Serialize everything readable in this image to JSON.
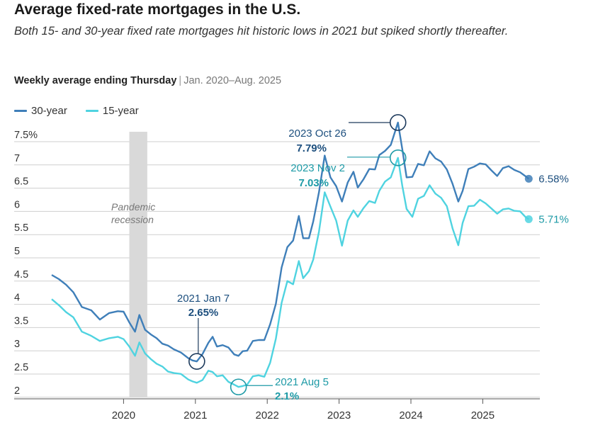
{
  "header": {
    "title": "Average fixed-rate mortgages in the U.S.",
    "subtitle": "Both 15- and 30-year fixed rate mortgages hit historic lows in 2021 but spiked shortly thereafter.",
    "description": "Weekly average ending Thursday",
    "separator": "|",
    "date_range": "Jan. 2020–Aug. 2025"
  },
  "colors": {
    "thirty_year": "#3f7fb9",
    "fifteen_year": "#4fd3e0",
    "recession": "#d9d9d9",
    "grid": "#cfcfcf",
    "annotation_dark": "#1d4f7e",
    "annotation_teal": "#1d9aa6"
  },
  "chart_data": {
    "type": "line",
    "x_axis": {
      "ticks": [
        "2020",
        "2021",
        "2022",
        "2023",
        "2024",
        "2025"
      ]
    },
    "y_axis": {
      "ticks": [
        "7.5%",
        "7",
        "6.5",
        "6",
        "5.5",
        "5",
        "4.5",
        "4",
        "3.5",
        "3",
        "2.5",
        "2"
      ],
      "range": [
        1.8,
        7.8
      ]
    },
    "grid": true,
    "legend": {
      "placement": "top-left"
    },
    "shaded_region": {
      "label": "Pandemic recession",
      "start": 2020.08,
      "end": 2020.33
    },
    "series": [
      {
        "name": "30-year",
        "end_label": "6.58%",
        "points": [
          [
            2019.0,
            4.51
          ],
          [
            2019.1,
            4.42
          ],
          [
            2019.2,
            4.3
          ],
          [
            2019.3,
            4.14
          ],
          [
            2019.42,
            3.82
          ],
          [
            2019.55,
            3.75
          ],
          [
            2019.67,
            3.55
          ],
          [
            2019.8,
            3.69
          ],
          [
            2019.92,
            3.73
          ],
          [
            2020.0,
            3.72
          ],
          [
            2020.08,
            3.49
          ],
          [
            2020.16,
            3.29
          ],
          [
            2020.22,
            3.65
          ],
          [
            2020.3,
            3.33
          ],
          [
            2020.38,
            3.23
          ],
          [
            2020.46,
            3.15
          ],
          [
            2020.54,
            3.03
          ],
          [
            2020.62,
            2.99
          ],
          [
            2020.7,
            2.91
          ],
          [
            2020.8,
            2.84
          ],
          [
            2020.9,
            2.72
          ],
          [
            2020.96,
            2.67
          ],
          [
            2021.02,
            2.65
          ],
          [
            2021.1,
            2.81
          ],
          [
            2021.18,
            3.05
          ],
          [
            2021.24,
            3.18
          ],
          [
            2021.3,
            2.97
          ],
          [
            2021.38,
            3.0
          ],
          [
            2021.46,
            2.95
          ],
          [
            2021.54,
            2.8
          ],
          [
            2021.6,
            2.77
          ],
          [
            2021.66,
            2.87
          ],
          [
            2021.72,
            2.88
          ],
          [
            2021.8,
            3.09
          ],
          [
            2021.88,
            3.11
          ],
          [
            2021.96,
            3.11
          ],
          [
            2022.04,
            3.45
          ],
          [
            2022.12,
            3.89
          ],
          [
            2022.2,
            4.67
          ],
          [
            2022.28,
            5.11
          ],
          [
            2022.36,
            5.25
          ],
          [
            2022.44,
            5.78
          ],
          [
            2022.5,
            5.3
          ],
          [
            2022.58,
            5.3
          ],
          [
            2022.64,
            5.66
          ],
          [
            2022.72,
            6.29
          ],
          [
            2022.8,
            7.08
          ],
          [
            2022.88,
            6.61
          ],
          [
            2022.96,
            6.42
          ],
          [
            2023.04,
            6.09
          ],
          [
            2023.12,
            6.5
          ],
          [
            2023.2,
            6.73
          ],
          [
            2023.26,
            6.39
          ],
          [
            2023.34,
            6.57
          ],
          [
            2023.42,
            6.79
          ],
          [
            2023.5,
            6.78
          ],
          [
            2023.56,
            7.09
          ],
          [
            2023.64,
            7.18
          ],
          [
            2023.72,
            7.31
          ],
          [
            2023.82,
            7.79
          ],
          [
            2023.88,
            7.22
          ],
          [
            2023.94,
            6.61
          ],
          [
            2024.02,
            6.62
          ],
          [
            2024.1,
            6.9
          ],
          [
            2024.18,
            6.87
          ],
          [
            2024.26,
            7.17
          ],
          [
            2024.34,
            7.02
          ],
          [
            2024.42,
            6.95
          ],
          [
            2024.5,
            6.78
          ],
          [
            2024.58,
            6.47
          ],
          [
            2024.66,
            6.09
          ],
          [
            2024.72,
            6.32
          ],
          [
            2024.8,
            6.79
          ],
          [
            2024.88,
            6.84
          ],
          [
            2024.96,
            6.91
          ],
          [
            2025.04,
            6.89
          ],
          [
            2025.12,
            6.76
          ],
          [
            2025.2,
            6.64
          ],
          [
            2025.28,
            6.81
          ],
          [
            2025.36,
            6.85
          ],
          [
            2025.44,
            6.77
          ],
          [
            2025.52,
            6.72
          ],
          [
            2025.6,
            6.63
          ],
          [
            2025.64,
            6.58
          ]
        ]
      },
      {
        "name": "15-year",
        "end_label": "5.71%",
        "points": [
          [
            2019.0,
            3.99
          ],
          [
            2019.1,
            3.86
          ],
          [
            2019.2,
            3.71
          ],
          [
            2019.3,
            3.6
          ],
          [
            2019.42,
            3.29
          ],
          [
            2019.55,
            3.2
          ],
          [
            2019.67,
            3.09
          ],
          [
            2019.8,
            3.15
          ],
          [
            2019.92,
            3.18
          ],
          [
            2020.0,
            3.13
          ],
          [
            2020.08,
            2.97
          ],
          [
            2020.16,
            2.77
          ],
          [
            2020.22,
            3.06
          ],
          [
            2020.3,
            2.82
          ],
          [
            2020.38,
            2.7
          ],
          [
            2020.46,
            2.6
          ],
          [
            2020.54,
            2.54
          ],
          [
            2020.62,
            2.43
          ],
          [
            2020.7,
            2.4
          ],
          [
            2020.8,
            2.38
          ],
          [
            2020.9,
            2.26
          ],
          [
            2020.96,
            2.22
          ],
          [
            2021.02,
            2.19
          ],
          [
            2021.1,
            2.25
          ],
          [
            2021.18,
            2.45
          ],
          [
            2021.24,
            2.42
          ],
          [
            2021.3,
            2.33
          ],
          [
            2021.38,
            2.35
          ],
          [
            2021.46,
            2.21
          ],
          [
            2021.54,
            2.15
          ],
          [
            2021.6,
            2.1
          ],
          [
            2021.66,
            2.12
          ],
          [
            2021.72,
            2.15
          ],
          [
            2021.8,
            2.33
          ],
          [
            2021.88,
            2.35
          ],
          [
            2021.96,
            2.32
          ],
          [
            2022.04,
            2.62
          ],
          [
            2022.12,
            3.14
          ],
          [
            2022.2,
            3.91
          ],
          [
            2022.28,
            4.38
          ],
          [
            2022.36,
            4.31
          ],
          [
            2022.44,
            4.81
          ],
          [
            2022.5,
            4.44
          ],
          [
            2022.58,
            4.59
          ],
          [
            2022.64,
            4.84
          ],
          [
            2022.72,
            5.44
          ],
          [
            2022.8,
            6.29
          ],
          [
            2022.88,
            5.98
          ],
          [
            2022.96,
            5.68
          ],
          [
            2023.04,
            5.14
          ],
          [
            2023.12,
            5.68
          ],
          [
            2023.2,
            5.9
          ],
          [
            2023.26,
            5.76
          ],
          [
            2023.34,
            5.95
          ],
          [
            2023.42,
            6.1
          ],
          [
            2023.5,
            6.06
          ],
          [
            2023.56,
            6.32
          ],
          [
            2023.64,
            6.52
          ],
          [
            2023.72,
            6.61
          ],
          [
            2023.82,
            7.03
          ],
          [
            2023.88,
            6.43
          ],
          [
            2023.94,
            5.93
          ],
          [
            2024.02,
            5.76
          ],
          [
            2024.1,
            6.15
          ],
          [
            2024.18,
            6.21
          ],
          [
            2024.26,
            6.44
          ],
          [
            2024.34,
            6.26
          ],
          [
            2024.42,
            6.17
          ],
          [
            2024.5,
            5.99
          ],
          [
            2024.58,
            5.51
          ],
          [
            2024.66,
            5.15
          ],
          [
            2024.72,
            5.63
          ],
          [
            2024.8,
            5.99
          ],
          [
            2024.88,
            6.0
          ],
          [
            2024.96,
            6.13
          ],
          [
            2025.04,
            6.05
          ],
          [
            2025.12,
            5.94
          ],
          [
            2025.2,
            5.83
          ],
          [
            2025.28,
            5.92
          ],
          [
            2025.36,
            5.94
          ],
          [
            2025.44,
            5.89
          ],
          [
            2025.52,
            5.88
          ],
          [
            2025.6,
            5.75
          ],
          [
            2025.64,
            5.71
          ]
        ]
      }
    ],
    "annotations": [
      {
        "date": "2021 Jan 7",
        "value": "2.65%",
        "series": "30-year",
        "x": 2021.02,
        "y": 2.65
      },
      {
        "date": "2021 Aug 5",
        "value": "2.1%",
        "series": "15-year",
        "x": 2021.6,
        "y": 2.1
      },
      {
        "date": "2023 Oct 26",
        "value": "7.79%",
        "series": "30-year",
        "x": 2023.82,
        "y": 7.79
      },
      {
        "date": "2023 Nov 2",
        "value": "7.03%",
        "series": "15-year",
        "x": 2023.82,
        "y": 7.03
      }
    ]
  }
}
